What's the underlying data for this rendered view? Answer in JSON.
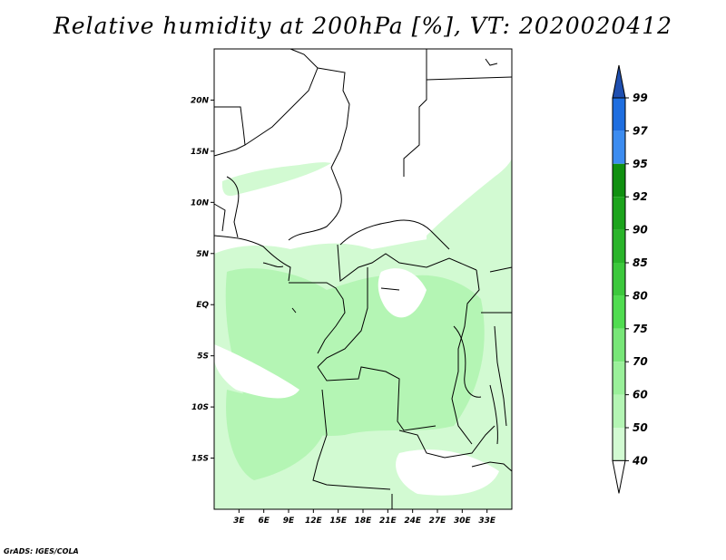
{
  "title": "Relative humidity at 200hPa [%], VT: 2020020412",
  "credit": "GrADS: IGES/COLA",
  "map": {
    "lon_range": [
      0,
      36
    ],
    "lat_range": [
      -20,
      25
    ],
    "lat_ticks": [
      {
        "value": 20,
        "label": "20N"
      },
      {
        "value": 15,
        "label": "15N"
      },
      {
        "value": 10,
        "label": "10N"
      },
      {
        "value": 5,
        "label": "5N"
      },
      {
        "value": 0,
        "label": "EQ"
      },
      {
        "value": -5,
        "label": "5S"
      },
      {
        "value": -10,
        "label": "10S"
      },
      {
        "value": -15,
        "label": "15S"
      }
    ],
    "lon_ticks": [
      {
        "value": 3,
        "label": "3E"
      },
      {
        "value": 6,
        "label": "6E"
      },
      {
        "value": 9,
        "label": "9E"
      },
      {
        "value": 12,
        "label": "12E"
      },
      {
        "value": 15,
        "label": "15E"
      },
      {
        "value": 18,
        "label": "18E"
      },
      {
        "value": 21,
        "label": "21E"
      },
      {
        "value": 24,
        "label": "24E"
      },
      {
        "value": 27,
        "label": "27E"
      },
      {
        "value": 30,
        "label": "30E"
      },
      {
        "value": 33,
        "label": "33E"
      }
    ]
  },
  "colorbar": {
    "levels": [
      "99",
      "97",
      "95",
      "92",
      "90",
      "85",
      "80",
      "75",
      "70",
      "60",
      "50",
      "40"
    ],
    "colors": [
      "#1e6ee0",
      "#3c8cf0",
      "#109010",
      "#1ca41c",
      "#2ab42a",
      "#3cc83c",
      "#50dc50",
      "#78e678",
      "#9af09a",
      "#b4f5b4",
      "#d2fad2",
      "#f0fff0"
    ],
    "top_arrow_color": "#1f4fb0",
    "bottom_arrow_color": "#ffffff"
  }
}
